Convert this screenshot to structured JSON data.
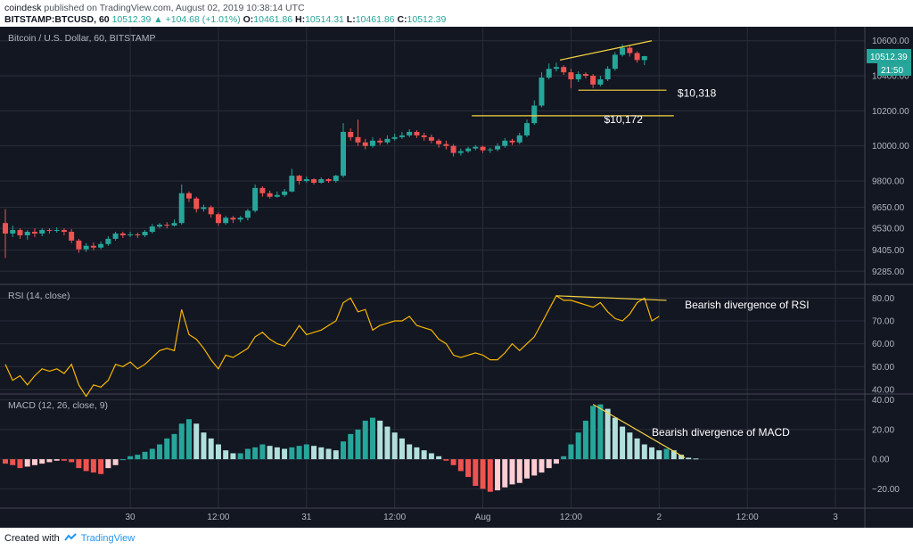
{
  "header": {
    "author": "coindesk",
    "published": "published on TradingView.com, August 02, 2019 10:38:14 UTC",
    "symbol": "BITSTAMP:BTCUSD, 60",
    "last": "10512.39",
    "change": "▲ +104.68 (+1.01%)",
    "o_label": "O:",
    "o_value": "10461.86",
    "h_label": "H:",
    "h_value": "10514.31",
    "l_label": "L:",
    "l_value": "10461.86",
    "c_label": "C:",
    "c_value": "10512.39"
  },
  "footer": {
    "created_with": "Created with",
    "brand": "TradingView"
  },
  "colors": {
    "background": "#131722",
    "grid": "#2a2e39",
    "up": "#26a69a",
    "down": "#ef5350",
    "annotation": "#f5d442",
    "rsi_line": "#f7b500",
    "text": "#b2b5be",
    "macd_up_strong": "#26a69a",
    "macd_up_weak": "#b2dfdb",
    "macd_down_strong": "#ef5350",
    "macd_down_weak": "#ffcdd2"
  },
  "chart_data": [
    {
      "type": "candlestick",
      "title": "Bitcoin / U.S. Dollar, 60, BITSTAMP",
      "ylim": [
        9210,
        10680
      ],
      "yticks": [
        9285,
        9405,
        9530,
        9650,
        9800,
        10000,
        10200,
        10400,
        10600
      ],
      "ytick_labels": [
        "9285.00",
        "9405.00",
        "9530.00",
        "9650.00",
        "9800.00",
        "10000.00",
        "10200.00",
        "10400.00",
        "10600.00"
      ],
      "xticks": [
        {
          "x": 17,
          "label": "30"
        },
        {
          "x": 29,
          "label": "12:00"
        },
        {
          "x": 41,
          "label": "31"
        },
        {
          "x": 53,
          "label": "12:00"
        },
        {
          "x": 65,
          "label": "Aug"
        },
        {
          "x": 77,
          "label": "12:00"
        },
        {
          "x": 89,
          "label": "2"
        },
        {
          "x": 101,
          "label": "12:00"
        },
        {
          "x": 113,
          "label": "3"
        }
      ],
      "xlim": [
        0,
        117
      ],
      "price_label": "10512.39",
      "countdown_label": "21:50",
      "candles": [
        [
          9560,
          9500,
          9640,
          9360
        ],
        [
          9500,
          9520,
          9545,
          9480
        ],
        [
          9520,
          9490,
          9530,
          9470
        ],
        [
          9490,
          9510,
          9520,
          9465
        ],
        [
          9510,
          9500,
          9530,
          9480
        ],
        [
          9500,
          9520,
          9530,
          9485
        ],
        [
          9520,
          9515,
          9530,
          9500
        ],
        [
          9515,
          9520,
          9535,
          9505
        ],
        [
          9520,
          9510,
          9530,
          9490
        ],
        [
          9510,
          9460,
          9525,
          9445
        ],
        [
          9460,
          9410,
          9470,
          9390
        ],
        [
          9410,
          9430,
          9445,
          9395
        ],
        [
          9430,
          9420,
          9450,
          9405
        ],
        [
          9420,
          9440,
          9455,
          9410
        ],
        [
          9440,
          9470,
          9485,
          9430
        ],
        [
          9470,
          9500,
          9510,
          9460
        ],
        [
          9500,
          9490,
          9510,
          9475
        ],
        [
          9490,
          9495,
          9510,
          9480
        ],
        [
          9495,
          9490,
          9505,
          9475
        ],
        [
          9490,
          9510,
          9520,
          9480
        ],
        [
          9510,
          9540,
          9555,
          9500
        ],
        [
          9540,
          9550,
          9560,
          9530
        ],
        [
          9550,
          9545,
          9565,
          9530
        ],
        [
          9545,
          9560,
          9580,
          9540
        ],
        [
          9560,
          9730,
          9780,
          9550
        ],
        [
          9730,
          9700,
          9740,
          9680
        ],
        [
          9700,
          9640,
          9710,
          9620
        ],
        [
          9640,
          9650,
          9665,
          9625
        ],
        [
          9650,
          9610,
          9660,
          9590
        ],
        [
          9610,
          9560,
          9620,
          9545
        ],
        [
          9560,
          9590,
          9600,
          9550
        ],
        [
          9590,
          9580,
          9600,
          9560
        ],
        [
          9580,
          9590,
          9600,
          9565
        ],
        [
          9590,
          9630,
          9640,
          9575
        ],
        [
          9630,
          9760,
          9780,
          9620
        ],
        [
          9760,
          9730,
          9770,
          9710
        ],
        [
          9730,
          9710,
          9745,
          9700
        ],
        [
          9710,
          9720,
          9740,
          9705
        ],
        [
          9720,
          9740,
          9755,
          9710
        ],
        [
          9740,
          9830,
          9870,
          9735
        ],
        [
          9830,
          9800,
          9835,
          9780
        ],
        [
          9800,
          9810,
          9825,
          9790
        ],
        [
          9810,
          9790,
          9815,
          9780
        ],
        [
          9790,
          9810,
          9820,
          9785
        ],
        [
          9810,
          9800,
          9815,
          9790
        ],
        [
          9800,
          9830,
          9835,
          9790
        ],
        [
          9830,
          10080,
          10130,
          9820
        ],
        [
          10080,
          10050,
          10100,
          10030
        ],
        [
          10050,
          10020,
          10150,
          10000
        ],
        [
          10020,
          10000,
          10040,
          9980
        ],
        [
          10000,
          10030,
          10050,
          9990
        ],
        [
          10030,
          10020,
          10045,
          10005
        ],
        [
          10020,
          10040,
          10060,
          10010
        ],
        [
          10040,
          10050,
          10070,
          10030
        ],
        [
          10050,
          10060,
          10080,
          10040
        ],
        [
          10060,
          10080,
          10095,
          10050
        ],
        [
          10080,
          10060,
          10090,
          10045
        ],
        [
          10060,
          10050,
          10075,
          10030
        ],
        [
          10050,
          10030,
          10065,
          10015
        ],
        [
          10030,
          10010,
          10040,
          9990
        ],
        [
          10010,
          10000,
          10030,
          9980
        ],
        [
          10000,
          9960,
          10010,
          9940
        ],
        [
          9960,
          9970,
          9985,
          9945
        ],
        [
          9970,
          9985,
          9995,
          9960
        ],
        [
          9985,
          9995,
          10005,
          9975
        ],
        [
          9995,
          9975,
          10000,
          9960
        ],
        [
          9975,
          9980,
          9990,
          9960
        ],
        [
          9980,
          10000,
          10015,
          9970
        ],
        [
          10000,
          10030,
          10045,
          9990
        ],
        [
          10030,
          10020,
          10040,
          10005
        ],
        [
          10020,
          10060,
          10075,
          10010
        ],
        [
          10060,
          10130,
          10150,
          10050
        ],
        [
          10130,
          10230,
          10260,
          10120
        ],
        [
          10230,
          10390,
          10420,
          10220
        ],
        [
          10390,
          10440,
          10470,
          10380
        ],
        [
          10440,
          10450,
          10475,
          10425
        ],
        [
          10450,
          10420,
          10460,
          10405
        ],
        [
          10420,
          10380,
          10440,
          10330
        ],
        [
          10380,
          10410,
          10425,
          10365
        ],
        [
          10410,
          10400,
          10420,
          10385
        ],
        [
          10400,
          10350,
          10410,
          10330
        ],
        [
          10350,
          10380,
          10400,
          10340
        ],
        [
          10380,
          10440,
          10455,
          10370
        ],
        [
          10440,
          10520,
          10535,
          10430
        ],
        [
          10520,
          10560,
          10580,
          10510
        ],
        [
          10560,
          10530,
          10570,
          10510
        ],
        [
          10530,
          10490,
          10540,
          10475
        ],
        [
          10490,
          10512,
          10514,
          10461
        ]
      ],
      "annotations": [
        {
          "type": "line",
          "x1": 75.5,
          "y1": 10490,
          "x2": 88,
          "y2": 10600
        },
        {
          "type": "line",
          "x1": 78,
          "y1": 10318,
          "x2": 90,
          "y2": 10318
        },
        {
          "type": "line",
          "x1": 63.5,
          "y1": 10172,
          "x2": 91,
          "y2": 10172
        },
        {
          "type": "label",
          "x": 91.5,
          "y": 10300,
          "text": "$10,318"
        },
        {
          "type": "label",
          "x": 81.5,
          "y": 10150,
          "text": "$10,172"
        }
      ]
    },
    {
      "type": "line",
      "title": "RSI (14, close)",
      "ylim": [
        38,
        86
      ],
      "yticks": [
        40,
        50,
        60,
        70,
        80
      ],
      "ytick_labels": [
        "40.00",
        "50.00",
        "60.00",
        "70.00",
        "80.00"
      ],
      "values": [
        51,
        44,
        46,
        42,
        46,
        49,
        48,
        49,
        47,
        51,
        42,
        37,
        42,
        41,
        44,
        51,
        50,
        52,
        49,
        51,
        54,
        57,
        58,
        57,
        75,
        64,
        62,
        58,
        53,
        49,
        55,
        54,
        56,
        58,
        63,
        65,
        62,
        60,
        59,
        63,
        68,
        64,
        65,
        66,
        68,
        70,
        78,
        80,
        74,
        75,
        66,
        68,
        69,
        70,
        70,
        72,
        68,
        67,
        66,
        62,
        60,
        55,
        54,
        55,
        56,
        55,
        53,
        53,
        56,
        60,
        57,
        60,
        63,
        69,
        75,
        81,
        79,
        79,
        78,
        77,
        76,
        78,
        74,
        71,
        70,
        73,
        78,
        80,
        70,
        72
      ],
      "annotations": [
        {
          "type": "line",
          "x1": 75,
          "y1": 81,
          "x2": 90,
          "y2": 79
        },
        {
          "type": "label",
          "x": 92.5,
          "y": 77,
          "text": "Bearish divergence of RSI"
        }
      ]
    },
    {
      "type": "bar",
      "title": "MACD (12, 26, close, 9)",
      "ylim": [
        -33,
        44
      ],
      "yticks": [
        -20,
        0,
        20,
        40
      ],
      "ytick_labels": [
        "−20.00",
        "0.00",
        "20.00",
        "40.00"
      ],
      "values": [
        -3,
        -4,
        -6,
        -5,
        -4,
        -3,
        -2,
        -1,
        -1,
        -2,
        -6,
        -8,
        -9,
        -10,
        -6,
        -4,
        0,
        2,
        3,
        5,
        7,
        10,
        14,
        17,
        24,
        27,
        24,
        18,
        14,
        10,
        6,
        4,
        4,
        7,
        8,
        10,
        9,
        8,
        7,
        8,
        9,
        10,
        9,
        8,
        7,
        6,
        12,
        17,
        20,
        26,
        28,
        26,
        22,
        18,
        14,
        10,
        8,
        6,
        4,
        2,
        -1,
        -4,
        -8,
        -12,
        -18,
        -20,
        -22,
        -21,
        -19,
        -17,
        -16,
        -13,
        -11,
        -9,
        -6,
        -3,
        2,
        10,
        18,
        26,
        36,
        37,
        34,
        28,
        22,
        18,
        14,
        10,
        8,
        6,
        7,
        6,
        3,
        1,
        0.5
      ],
      "annotations": [
        {
          "type": "line",
          "x1": 80,
          "y1": 37,
          "x2": 92.5,
          "y2": 1
        },
        {
          "type": "label",
          "x": 88,
          "y": 18,
          "text": "Bearish divergence of MACD"
        }
      ]
    }
  ]
}
